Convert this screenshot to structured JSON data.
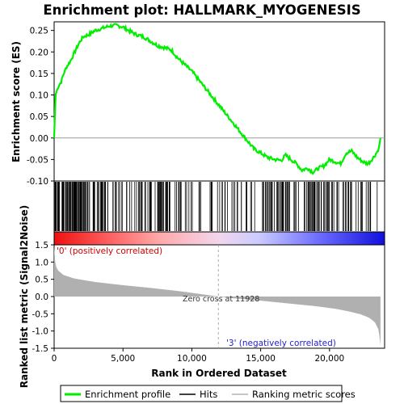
{
  "chart_data": {
    "type": "line",
    "title": "Enrichment plot: HALLMARK_MYOGENESIS",
    "xlabel": "Rank in Ordered Dataset",
    "ylabel_top": "Enrichment score (ES)",
    "ylabel_bottom": "Ranked list metric (Signal2Noise)",
    "xlim": [
      0,
      24000
    ],
    "x_ticks": [
      0,
      5000,
      10000,
      15000,
      20000
    ],
    "x_tick_labels": [
      "0",
      "5,000",
      "10,000",
      "15,000",
      "20,000"
    ],
    "top_ylim": [
      -0.1,
      0.27
    ],
    "top_y_ticks": [
      -0.1,
      -0.05,
      0.0,
      0.05,
      0.1,
      0.15,
      0.2,
      0.25
    ],
    "top_y_tick_labels": [
      "-0.10",
      "-0.05",
      "0.00",
      "0.05",
      "0.10",
      "0.15",
      "0.20",
      "0.25"
    ],
    "bottom_ylim": [
      -1.5,
      1.5
    ],
    "bottom_y_ticks": [
      -1.5,
      -1.0,
      -0.5,
      0.0,
      0.5,
      1.0,
      1.5
    ],
    "bottom_y_tick_labels": [
      "-1.5",
      "-1.0",
      "-0.5",
      "0.0",
      "0.5",
      "1.0",
      "1.5"
    ],
    "enrichment_profile": {
      "name": "Enrichment profile",
      "color": "#00ee00",
      "x": [
        0,
        100,
        300,
        500,
        700,
        900,
        1200,
        1500,
        1800,
        2100,
        2500,
        3000,
        3500,
        4000,
        4500,
        5000,
        5500,
        6000,
        6500,
        7000,
        7500,
        8000,
        8500,
        9000,
        9500,
        10000,
        10500,
        11000,
        11500,
        12000,
        12500,
        13000,
        13500,
        14000,
        14500,
        15000,
        15500,
        16000,
        16500,
        16800,
        17200,
        17600,
        18000,
        18400,
        18800,
        19200,
        19600,
        20000,
        20400,
        20800,
        21200,
        21600,
        22000,
        22400,
        22800,
        23200,
        23500,
        23600,
        23700
      ],
      "y": [
        0.0,
        0.1,
        0.12,
        0.13,
        0.15,
        0.165,
        0.18,
        0.2,
        0.22,
        0.235,
        0.24,
        0.25,
        0.255,
        0.26,
        0.262,
        0.258,
        0.248,
        0.24,
        0.235,
        0.225,
        0.215,
        0.21,
        0.205,
        0.185,
        0.17,
        0.155,
        0.135,
        0.115,
        0.095,
        0.075,
        0.055,
        0.035,
        0.015,
        -0.005,
        -0.025,
        -0.035,
        -0.045,
        -0.05,
        -0.052,
        -0.04,
        -0.05,
        -0.06,
        -0.075,
        -0.07,
        -0.08,
        -0.07,
        -0.065,
        -0.05,
        -0.055,
        -0.06,
        -0.035,
        -0.03,
        -0.045,
        -0.055,
        -0.06,
        -0.045,
        -0.03,
        -0.02,
        0.0
      ]
    },
    "hits_label": "Hits",
    "ranking_metric": {
      "name": "Ranking metric scores",
      "color": "#b0b0b0",
      "x": [
        0,
        100,
        300,
        700,
        1500,
        3000,
        5000,
        7000,
        9000,
        10500,
        11928,
        13000,
        15000,
        17000,
        19000,
        20500,
        21500,
        22300,
        22900,
        23300,
        23550,
        23650,
        23700
      ],
      "y": [
        1.45,
        0.9,
        0.75,
        0.62,
        0.52,
        0.42,
        0.33,
        0.25,
        0.16,
        0.08,
        0.0,
        -0.05,
        -0.12,
        -0.2,
        -0.28,
        -0.36,
        -0.44,
        -0.52,
        -0.62,
        -0.75,
        -0.95,
        -1.2,
        -1.42
      ]
    },
    "zero_cross_label": "Zero cross at 11928",
    "zero_cross_x": 11928,
    "positive_label": "'0' (positively correlated)",
    "negative_label": "'3' (negatively correlated)",
    "legend": [
      "Enrichment profile",
      "Hits",
      "Ranking metric scores"
    ],
    "colors": {
      "profile": "#00ee00",
      "hits": "#000000",
      "metric": "#b0b0b0",
      "positive": "#ff0000",
      "negative": "#0000ff",
      "zero_line": "#999999"
    }
  }
}
